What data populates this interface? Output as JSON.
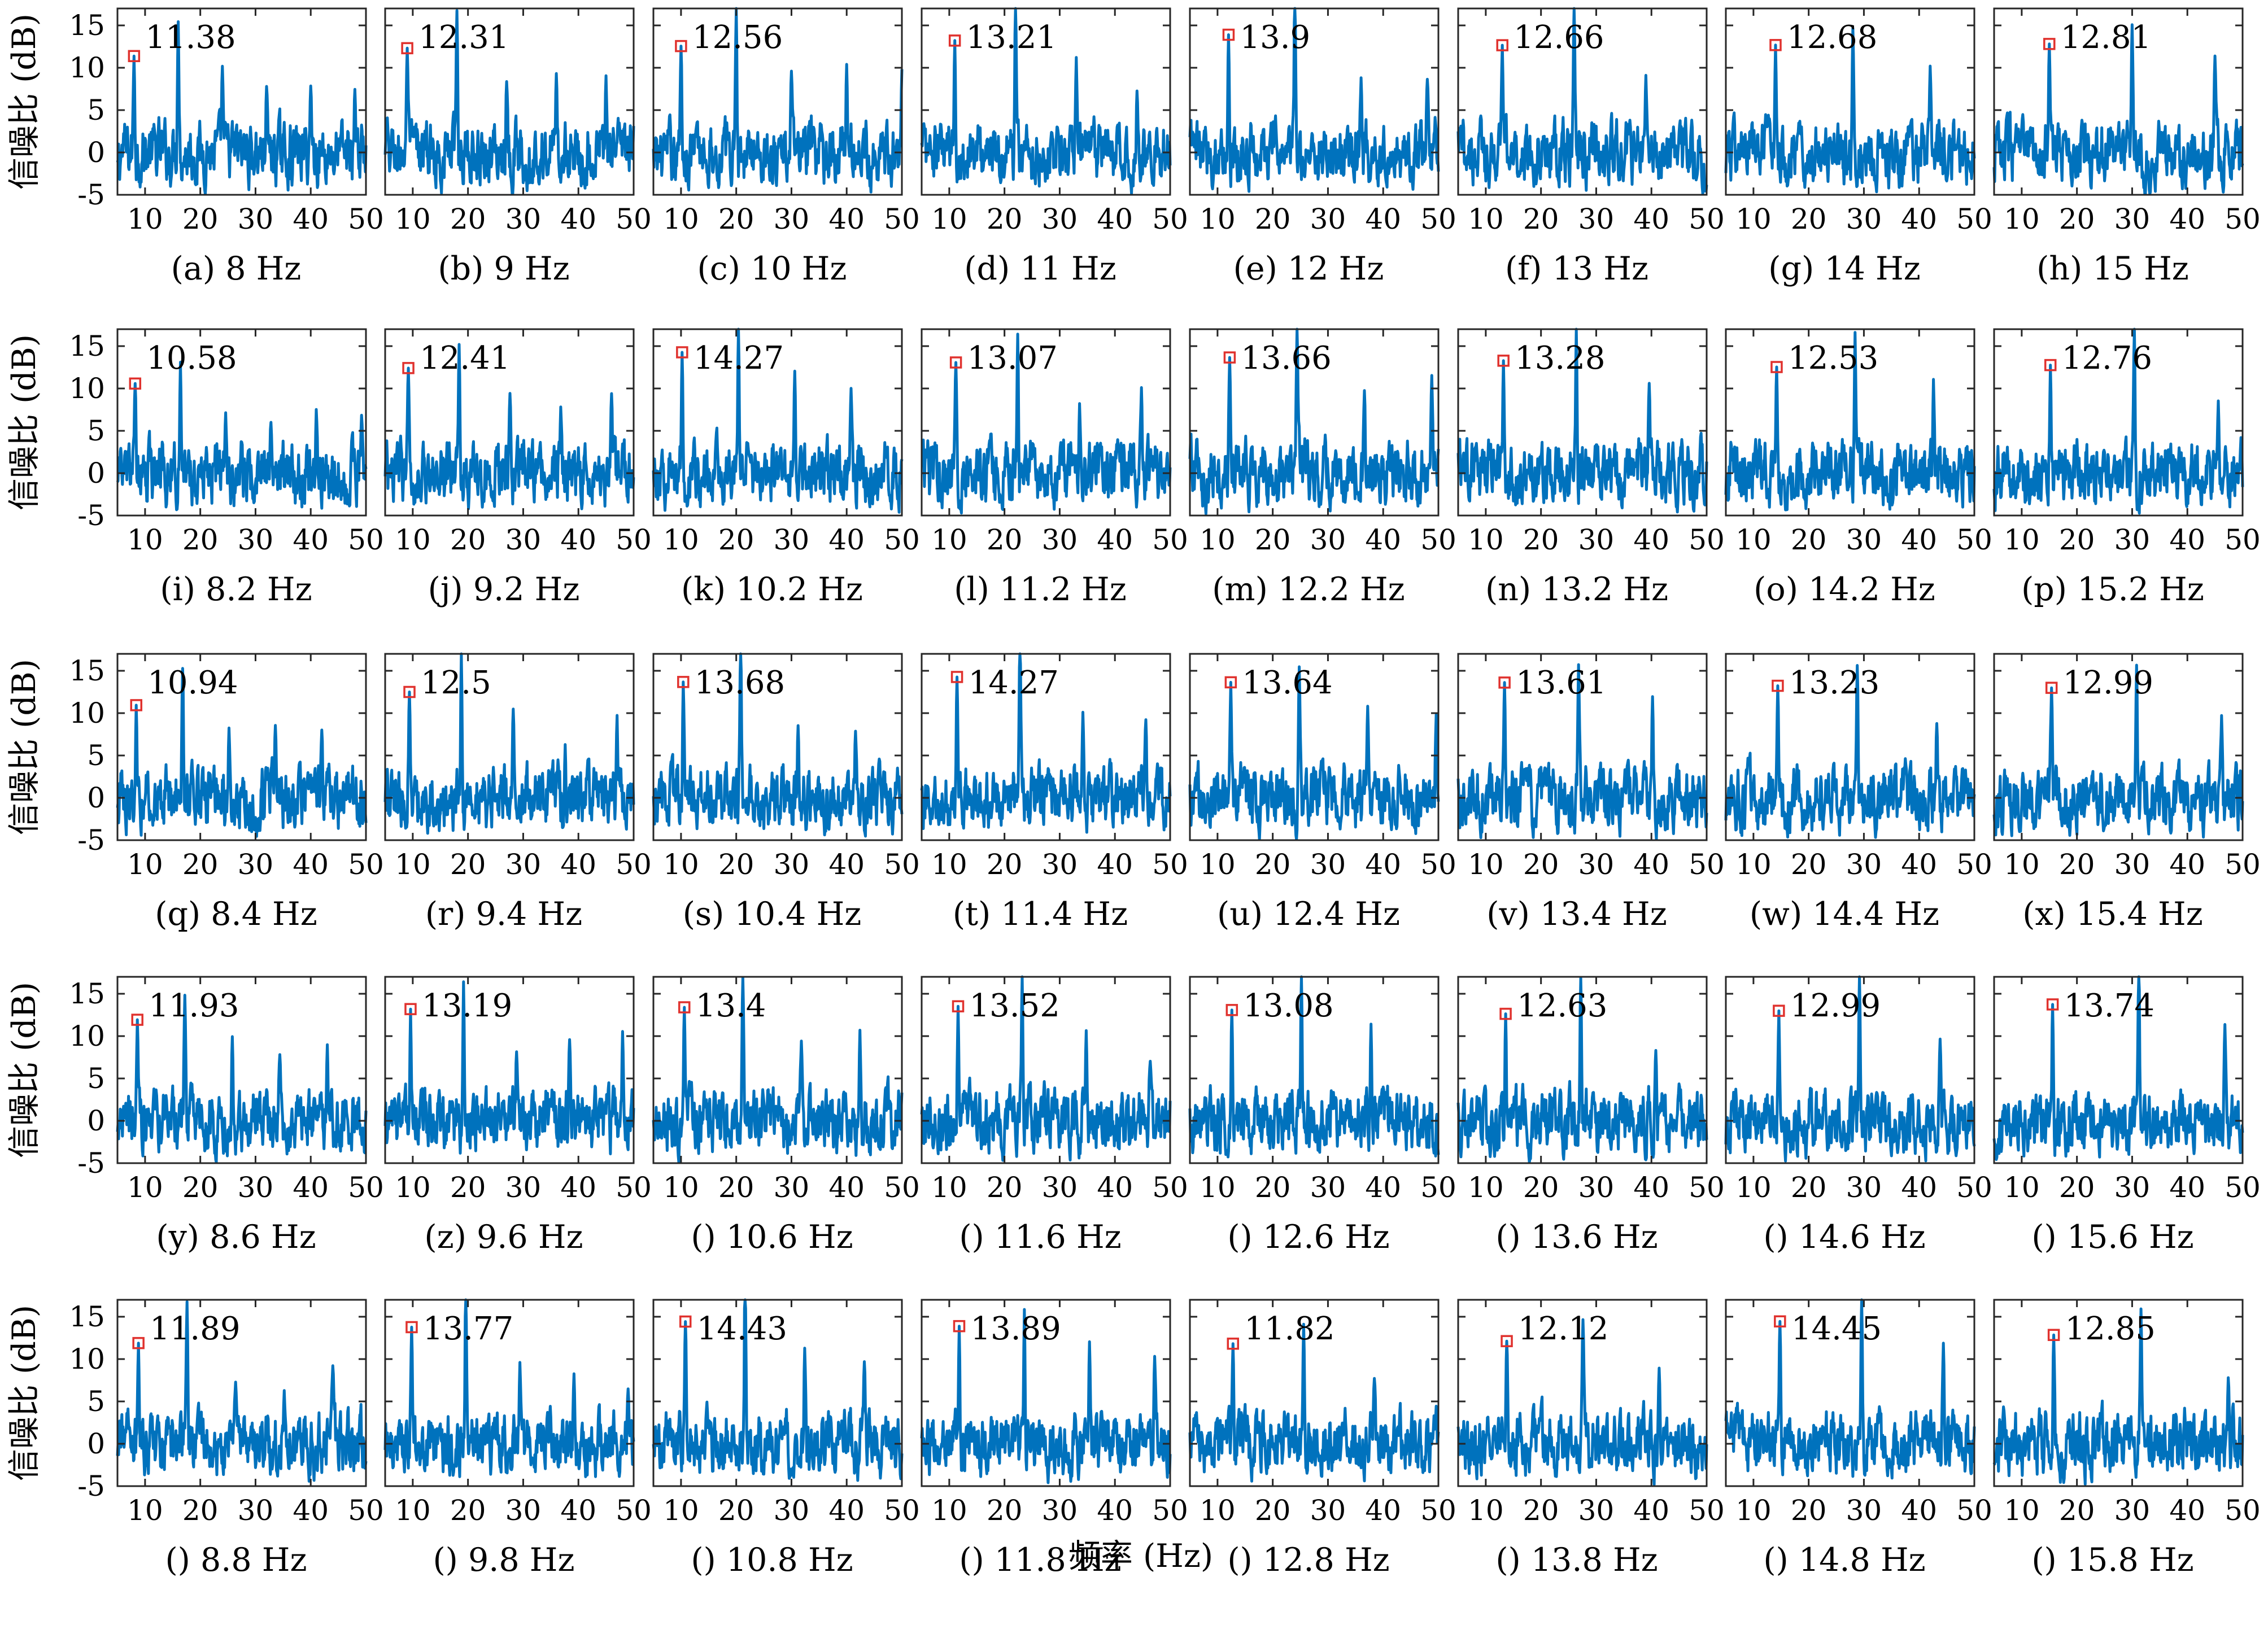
{
  "figure": {
    "ylabel": "信噪比 (dB)",
    "xlabel": "频率 (Hz)"
  },
  "chart_data": {
    "type": "line",
    "series_color": "#0072BD",
    "marker_color": "#E0322E",
    "xlim": [
      5,
      50
    ],
    "ylim": [
      -5,
      17
    ],
    "xticks": [
      10,
      20,
      30,
      40,
      50
    ],
    "yticks": [
      -5,
      0,
      5,
      10,
      15
    ],
    "axis_ylabel": "信噪比 (dB)",
    "axis_xlabel": "频率 (Hz)",
    "panels": [
      {
        "caption": "(a) 8 Hz",
        "stim_hz": 8,
        "peak": 11.38,
        "peak_label": "11.38"
      },
      {
        "caption": "(b) 9 Hz",
        "stim_hz": 9,
        "peak": 12.31,
        "peak_label": "12.31"
      },
      {
        "caption": "(c) 10 Hz",
        "stim_hz": 10,
        "peak": 12.56,
        "peak_label": "12.56"
      },
      {
        "caption": "(d) 11 Hz",
        "stim_hz": 11,
        "peak": 13.21,
        "peak_label": "13.21"
      },
      {
        "caption": "(e) 12 Hz",
        "stim_hz": 12,
        "peak": 13.9,
        "peak_label": "13.9"
      },
      {
        "caption": "(f) 13 Hz",
        "stim_hz": 13,
        "peak": 12.66,
        "peak_label": "12.66"
      },
      {
        "caption": "(g) 14 Hz",
        "stim_hz": 14,
        "peak": 12.68,
        "peak_label": "12.68"
      },
      {
        "caption": "(h) 15 Hz",
        "stim_hz": 15,
        "peak": 12.81,
        "peak_label": "12.81"
      },
      {
        "caption": "(i) 8.2 Hz",
        "stim_hz": 8.2,
        "peak": 10.58,
        "peak_label": "10.58"
      },
      {
        "caption": "(j) 9.2 Hz",
        "stim_hz": 9.2,
        "peak": 12.41,
        "peak_label": "12.41"
      },
      {
        "caption": "(k) 10.2 Hz",
        "stim_hz": 10.2,
        "peak": 14.27,
        "peak_label": "14.27"
      },
      {
        "caption": "(l) 11.2 Hz",
        "stim_hz": 11.2,
        "peak": 13.07,
        "peak_label": "13.07"
      },
      {
        "caption": "(m) 12.2 Hz",
        "stim_hz": 12.2,
        "peak": 13.66,
        "peak_label": "13.66"
      },
      {
        "caption": "(n) 13.2 Hz",
        "stim_hz": 13.2,
        "peak": 13.28,
        "peak_label": "13.28"
      },
      {
        "caption": "(o) 14.2 Hz",
        "stim_hz": 14.2,
        "peak": 12.53,
        "peak_label": "12.53"
      },
      {
        "caption": "(p) 15.2 Hz",
        "stim_hz": 15.2,
        "peak": 12.76,
        "peak_label": "12.76"
      },
      {
        "caption": "(q) 8.4 Hz",
        "stim_hz": 8.4,
        "peak": 10.94,
        "peak_label": "10.94"
      },
      {
        "caption": "(r) 9.4 Hz",
        "stim_hz": 9.4,
        "peak": 12.5,
        "peak_label": "12.5"
      },
      {
        "caption": "(s) 10.4 Hz",
        "stim_hz": 10.4,
        "peak": 13.68,
        "peak_label": "13.68"
      },
      {
        "caption": "(t) 11.4 Hz",
        "stim_hz": 11.4,
        "peak": 14.27,
        "peak_label": "14.27"
      },
      {
        "caption": "(u) 12.4 Hz",
        "stim_hz": 12.4,
        "peak": 13.64,
        "peak_label": "13.64"
      },
      {
        "caption": "(v) 13.4 Hz",
        "stim_hz": 13.4,
        "peak": 13.61,
        "peak_label": "13.61"
      },
      {
        "caption": "(w) 14.4 Hz",
        "stim_hz": 14.4,
        "peak": 13.23,
        "peak_label": "13.23"
      },
      {
        "caption": "(x) 15.4 Hz",
        "stim_hz": 15.4,
        "peak": 12.99,
        "peak_label": "12.99"
      },
      {
        "caption": "(y) 8.6 Hz",
        "stim_hz": 8.6,
        "peak": 11.93,
        "peak_label": "11.93"
      },
      {
        "caption": "(z) 9.6 Hz",
        "stim_hz": 9.6,
        "peak": 13.19,
        "peak_label": "13.19"
      },
      {
        "caption": "() 10.6 Hz",
        "stim_hz": 10.6,
        "peak": 13.4,
        "peak_label": "13.4"
      },
      {
        "caption": "() 11.6 Hz",
        "stim_hz": 11.6,
        "peak": 13.52,
        "peak_label": "13.52"
      },
      {
        "caption": "() 12.6 Hz",
        "stim_hz": 12.6,
        "peak": 13.08,
        "peak_label": "13.08"
      },
      {
        "caption": "() 13.6 Hz",
        "stim_hz": 13.6,
        "peak": 12.63,
        "peak_label": "12.63"
      },
      {
        "caption": "() 14.6 Hz",
        "stim_hz": 14.6,
        "peak": 12.99,
        "peak_label": "12.99"
      },
      {
        "caption": "() 15.6 Hz",
        "stim_hz": 15.6,
        "peak": 13.74,
        "peak_label": "13.74"
      },
      {
        "caption": "() 8.8 Hz",
        "stim_hz": 8.8,
        "peak": 11.89,
        "peak_label": "11.89"
      },
      {
        "caption": "() 9.8 Hz",
        "stim_hz": 9.8,
        "peak": 13.77,
        "peak_label": "13.77"
      },
      {
        "caption": "() 10.8 Hz",
        "stim_hz": 10.8,
        "peak": 14.43,
        "peak_label": "14.43"
      },
      {
        "caption": "() 11.8 Hz",
        "stim_hz": 11.8,
        "peak": 13.89,
        "peak_label": "13.89"
      },
      {
        "caption": "() 12.8 Hz",
        "stim_hz": 12.8,
        "peak": 11.82,
        "peak_label": "11.82"
      },
      {
        "caption": "() 13.8 Hz",
        "stim_hz": 13.8,
        "peak": 12.12,
        "peak_label": "12.12"
      },
      {
        "caption": "() 14.8 Hz",
        "stim_hz": 14.8,
        "peak": 14.45,
        "peak_label": "14.45"
      },
      {
        "caption": "() 15.8 Hz",
        "stim_hz": 15.8,
        "peak": 12.85,
        "peak_label": "12.85"
      }
    ]
  }
}
